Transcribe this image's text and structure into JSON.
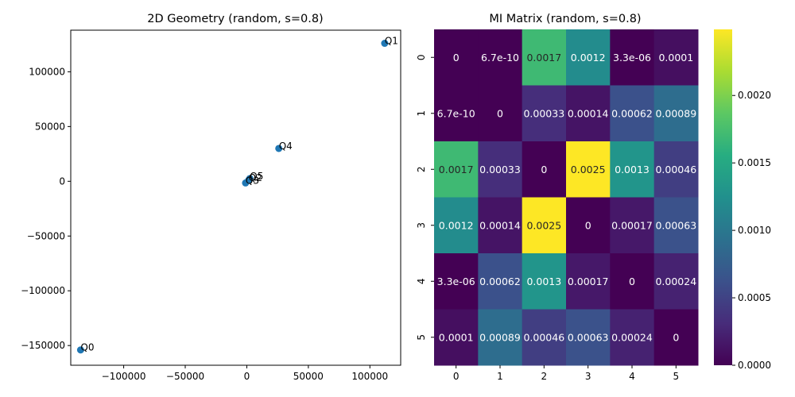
{
  "chart_data": [
    {
      "type": "scatter",
      "title": "2D Geometry (random, s=0.8)",
      "xlabel": "",
      "ylabel": "",
      "xlim": [
        -143000,
        125000
      ],
      "ylim": [
        -168000,
        138000
      ],
      "xticks": [
        -100000,
        -50000,
        0,
        50000,
        100000
      ],
      "xtick_labels": [
        "−100000",
        "−50000",
        "0",
        "50000",
        "100000"
      ],
      "yticks": [
        -150000,
        -100000,
        -50000,
        0,
        50000,
        100000
      ],
      "ytick_labels": [
        "−150000",
        "−100000",
        "−50000",
        "0",
        "50000",
        "100000"
      ],
      "grid": false,
      "marker_color": "#1f77b4",
      "points": [
        {
          "label": "Q0",
          "x": -135000,
          "y": -154000
        },
        {
          "label": "Q1",
          "x": 112000,
          "y": 126000
        },
        {
          "label": "Q2",
          "x": 1500,
          "y": 1000
        },
        {
          "label": "Q3",
          "x": -1000,
          "y": -1500
        },
        {
          "label": "Q4",
          "x": 26000,
          "y": 30000
        },
        {
          "label": "Q5",
          "x": 2500,
          "y": 2500
        }
      ]
    },
    {
      "type": "heatmap",
      "title": "MI Matrix (random, s=0.8)",
      "xlabel": "",
      "ylabel": "",
      "x_categories": [
        "0",
        "1",
        "2",
        "3",
        "4",
        "5"
      ],
      "y_categories": [
        "0",
        "1",
        "2",
        "3",
        "4",
        "5"
      ],
      "values": [
        [
          0,
          6.7e-10,
          0.0017,
          0.0012,
          3.3e-06,
          0.0001
        ],
        [
          6.7e-10,
          0,
          0.00033,
          0.00014,
          0.00062,
          0.00089
        ],
        [
          0.0017,
          0.00033,
          0,
          0.0025,
          0.0013,
          0.00046
        ],
        [
          0.0012,
          0.00014,
          0.0025,
          0,
          0.00017,
          0.00063
        ],
        [
          3.3e-06,
          0.00062,
          0.0013,
          0.00017,
          0,
          0.00024
        ],
        [
          0.0001,
          0.00089,
          0.00046,
          0.00063,
          0.00024,
          0
        ]
      ],
      "annotations": [
        [
          "0",
          "6.7e-10",
          "0.0017",
          "0.0012",
          "3.3e-06",
          "0.0001"
        ],
        [
          "6.7e-10",
          "0",
          "0.00033",
          "0.00014",
          "0.00062",
          "0.00089"
        ],
        [
          "0.0017",
          "0.00033",
          "0",
          "0.0025",
          "0.0013",
          "0.00046"
        ],
        [
          "0.0012",
          "0.00014",
          "0.0025",
          "0",
          "0.00017",
          "0.00063"
        ],
        [
          "3.3e-06",
          "0.00062",
          "0.0013",
          "0.00017",
          "0",
          "0.00024"
        ],
        [
          "0.0001",
          "0.00089",
          "0.00046",
          "0.00063",
          "0.00024",
          "0"
        ]
      ],
      "colormap": "viridis",
      "colorbar": {
        "min": 0,
        "max": 0.00249,
        "ticks": [
          0,
          0.0005,
          0.001,
          0.0015,
          0.002
        ],
        "tick_labels": [
          "0.0000",
          "0.0005",
          "0.0010",
          "0.0015",
          "0.0020"
        ]
      }
    }
  ]
}
